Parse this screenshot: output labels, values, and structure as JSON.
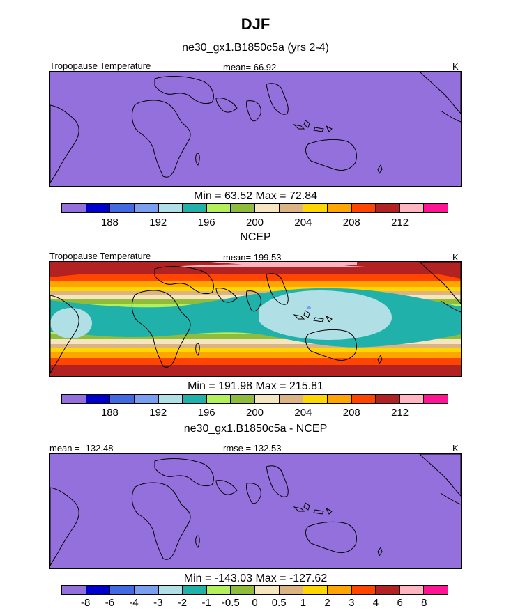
{
  "figure": {
    "title": "DJF",
    "units": "K"
  },
  "colormap": {
    "colors": [
      "#9370db",
      "#0000cd",
      "#4169e1",
      "#7b9ff0",
      "#b0e0e6",
      "#20b2aa",
      "#b4f05a",
      "#8fbc3a",
      "#f5e6c0",
      "#dcb484",
      "#ffd700",
      "#ffa500",
      "#ff4500",
      "#b22222",
      "#ffb6c1",
      "#ff1493"
    ]
  },
  "panels": [
    {
      "subtitle": "ne30_gx1.B1850c5a (yrs 2-4)",
      "left_label": "Tropopause Temperature",
      "center_label": "mean=  66.92",
      "right_label": "K",
      "minmax": "Min =  63.52 Max =  72.84",
      "field": "uniform",
      "tick_labels": [
        "188",
        "192",
        "196",
        "200",
        "204",
        "208",
        "212"
      ]
    },
    {
      "subtitle": "NCEP",
      "left_label": "Tropopause Temperature",
      "center_label": "mean= 199.53",
      "right_label": "K",
      "minmax": "Min = 191.98 Max = 215.81",
      "field": "ncep",
      "tick_labels": [
        "188",
        "192",
        "196",
        "200",
        "204",
        "208",
        "212"
      ]
    },
    {
      "subtitle": "ne30_gx1.B1850c5a - NCEP",
      "left_label": "mean = -132.48",
      "center_label": "rmse = 132.53",
      "right_label": "K",
      "minmax": "Min = -143.03 Max = -127.62",
      "field": "uniform",
      "tick_labels": [
        "-8",
        "-6",
        "-4",
        "-3",
        "-2",
        "-1",
        "-0.5",
        "0",
        "0.5",
        "1",
        "2",
        "3",
        "4",
        "6",
        "8"
      ]
    }
  ]
}
